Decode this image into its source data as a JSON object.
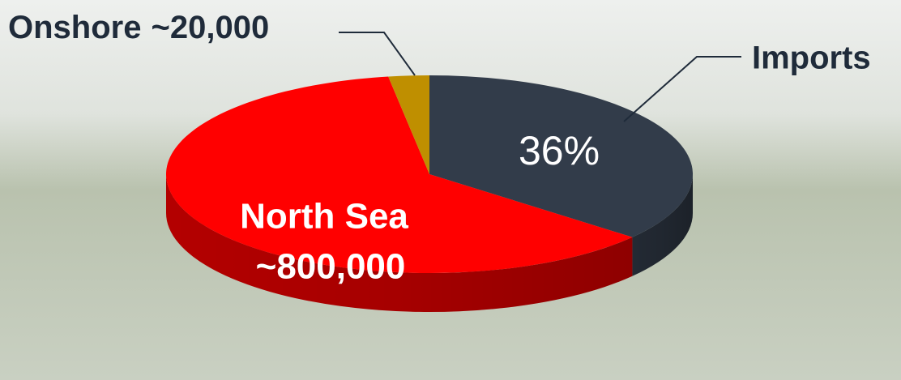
{
  "chart_data": {
    "type": "pie",
    "categories": [
      "Imports",
      "North Sea",
      "Onshore"
    ],
    "values": [
      36,
      61.5,
      2.5
    ],
    "colors": [
      "#323c4a",
      "#ff0000",
      "#bf8f00"
    ],
    "value_labels": [
      "36%",
      null,
      null
    ],
    "annotations": [
      "~800,000",
      "~20,000"
    ]
  }
}
